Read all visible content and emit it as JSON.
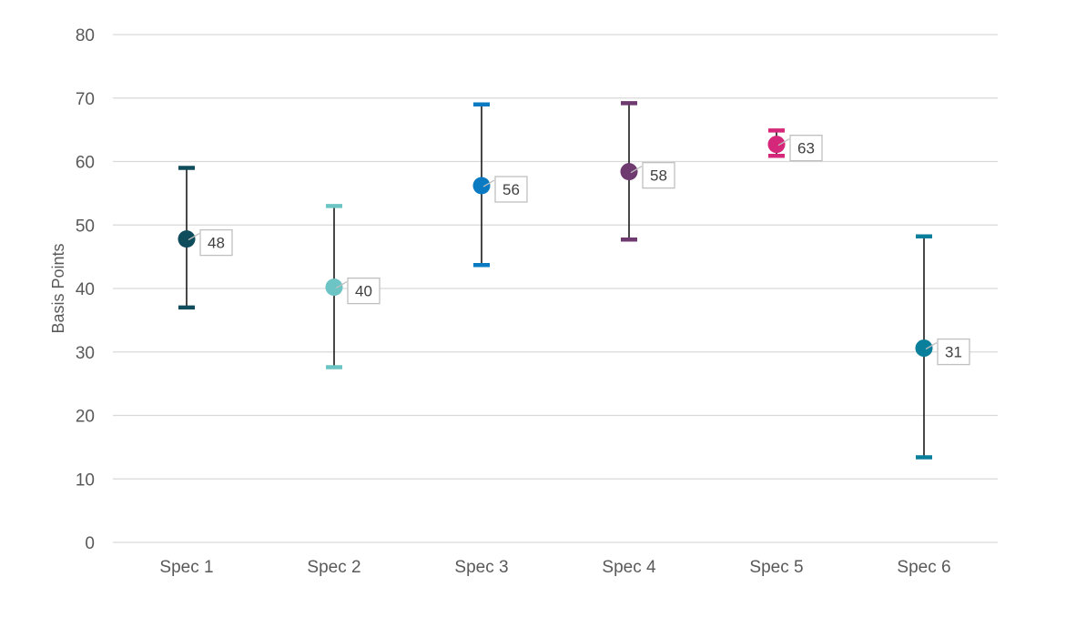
{
  "chart_data": {
    "type": "scatter",
    "title": "",
    "xlabel": "",
    "ylabel": "Basis Points",
    "ylim": [
      0,
      80
    ],
    "yticks": [
      0,
      10,
      20,
      30,
      40,
      50,
      60,
      70,
      80
    ],
    "grid": true,
    "legend": "none",
    "categories": [
      "Spec 1",
      "Spec 2",
      "Spec 3",
      "Spec 4",
      "Spec 5",
      "Spec 6"
    ],
    "points": [
      {
        "category": "Spec 1",
        "value": 47.8,
        "label": "48",
        "lower": 37.0,
        "upper": 59.0,
        "color": "#0f4c5c"
      },
      {
        "category": "Spec 2",
        "value": 40.2,
        "label": "40",
        "lower": 27.6,
        "upper": 53.0,
        "color": "#6cc4c4"
      },
      {
        "category": "Spec 3",
        "value": 56.2,
        "label": "56",
        "lower": 43.7,
        "upper": 69.0,
        "color": "#0a7bc2"
      },
      {
        "category": "Spec 4",
        "value": 58.4,
        "label": "58",
        "lower": 47.7,
        "upper": 69.2,
        "color": "#6e3a70"
      },
      {
        "category": "Spec 5",
        "value": 62.7,
        "label": "63",
        "lower": 60.9,
        "upper": 64.9,
        "color": "#d6287a"
      },
      {
        "category": "Spec 6",
        "value": 30.6,
        "label": "31",
        "lower": 13.4,
        "upper": 48.2,
        "color": "#0a7f9c"
      }
    ]
  }
}
